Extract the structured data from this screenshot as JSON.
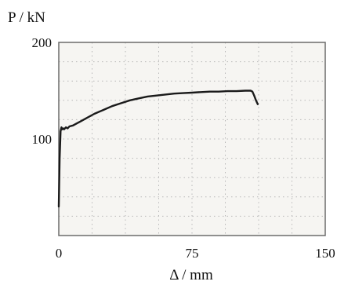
{
  "chart_data": {
    "type": "line",
    "title": "",
    "xlabel": "Δ / mm",
    "ylabel": "P / kN",
    "xlim": [
      0,
      150
    ],
    "ylim": [
      0,
      200
    ],
    "x_ticks": [
      "0",
      "75",
      "150"
    ],
    "y_ticks": [
      "100",
      "200"
    ],
    "grid": "dotted",
    "colors": {
      "line": "#1a1a1a",
      "frame": "#6b6b6b",
      "plot_bg": "#f6f5f2",
      "grid": "#b8b8b8"
    },
    "series": [
      {
        "x": [
          0,
          0.5,
          1,
          1.5,
          2,
          2.5,
          3,
          4,
          5,
          6,
          8,
          10,
          12,
          15,
          20,
          25,
          30,
          35,
          40,
          45,
          50,
          55,
          60,
          65,
          70,
          75,
          80,
          85,
          90,
          95,
          100,
          105,
          108,
          109,
          110,
          111,
          112
        ],
        "y": [
          30,
          80,
          108,
          112,
          110,
          111,
          110,
          112,
          111,
          113,
          114,
          116,
          118,
          121,
          126,
          130,
          134,
          137,
          140,
          142,
          144,
          145,
          146,
          147,
          147.5,
          148,
          148.5,
          149,
          149,
          149.5,
          149.5,
          150,
          150,
          149,
          145,
          140,
          136
        ]
      }
    ]
  }
}
